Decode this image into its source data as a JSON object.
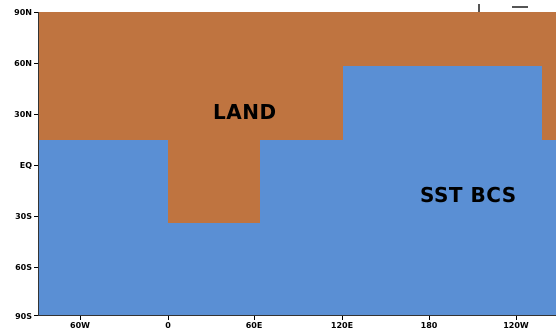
{
  "colors": {
    "land": "#bf7440",
    "ocean": "#5a8fd4"
  },
  "map": {
    "labels": {
      "land": "LAND",
      "sst": "SST BCS"
    },
    "y_ticks": [
      "90N",
      "60N",
      "30N",
      "EQ",
      "30S",
      "60S",
      "90S"
    ],
    "x_ticks": [
      "60W",
      "0",
      "60E",
      "120E",
      "180",
      "120W"
    ]
  }
}
